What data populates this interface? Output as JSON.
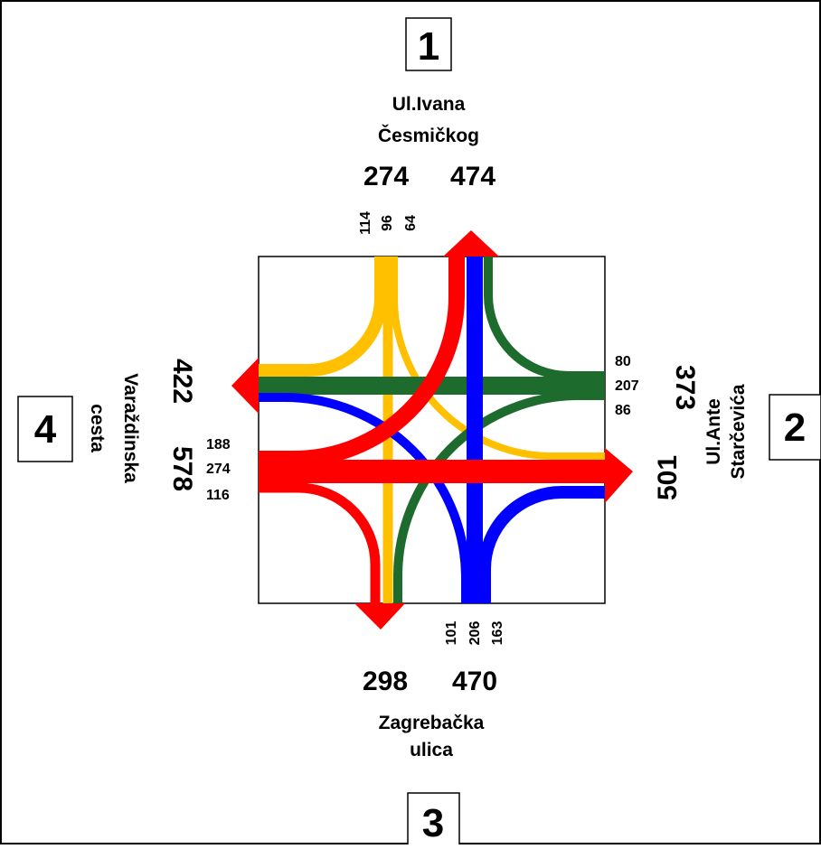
{
  "approaches": [
    {
      "id": "north",
      "number": "1",
      "name_lines": [
        "Ul.Ivana",
        "Česmičkog"
      ],
      "in_total": "274",
      "out_total": "474",
      "movements": [
        "114",
        "96",
        "64"
      ]
    },
    {
      "id": "east",
      "number": "2",
      "name_lines": [
        "Ul.Ante",
        "Starčevića"
      ],
      "in_total": "373",
      "out_total": "501",
      "movements": [
        "80",
        "207",
        "86"
      ]
    },
    {
      "id": "south",
      "number": "3",
      "name_lines": [
        "Zagrebačka",
        "ulica"
      ],
      "in_total": "470",
      "out_total": "298",
      "movements": [
        "101",
        "206",
        "163"
      ]
    },
    {
      "id": "west",
      "number": "4",
      "name_lines": [
        "Varaždinska",
        "cesta"
      ],
      "in_total": "578",
      "out_total": "422",
      "movements": [
        "188",
        "274",
        "116"
      ]
    }
  ],
  "colors": {
    "north_flow": "#ffc000",
    "east_flow": "#1e6b2e",
    "south_flow": "#0000ff",
    "west_flow": "#ff0000",
    "border": "#000000"
  }
}
